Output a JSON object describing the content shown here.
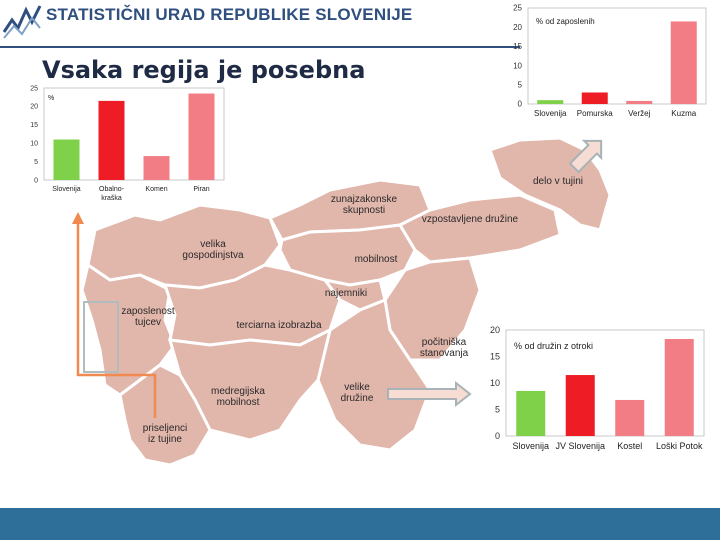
{
  "header": {
    "org_name": "STATISTIČNI URAD REPUBLIKE SLOVENIJE",
    "title": "Vsaka regija je posebna"
  },
  "colors": {
    "header_blue": "#2f4f7f",
    "footer_blue": "#2e6f9a",
    "map_fill": "#e1b6ab",
    "bar_green": "#7fd14a",
    "bar_red": "#ee1c24",
    "bar_pink": "#f27d85",
    "arrow_orange": "#f08a50",
    "arrow_gray": "#b0bcc0"
  },
  "icons": {
    "logo": "statistics-logo-icon"
  },
  "map": {
    "labels": [
      "zunajzakonske skupnosti",
      "vzpostavljene družine",
      "delo v tujini",
      "velika gospodinjstva",
      "mobilnost",
      "najemniki",
      "zaposlenost tujcev",
      "terciarna izobrazba",
      "počitniška stanovanja",
      "medregijska mobilnost",
      "velike družine",
      "priseljenci iz tujine"
    ]
  },
  "chart_data": [
    {
      "type": "bar",
      "title": "",
      "ylabel": "%",
      "categories": [
        "Slovenija",
        "Obalno-kraška",
        "Komen",
        "Piran"
      ],
      "values": [
        11,
        21.5,
        6.5,
        23.5
      ],
      "colors": [
        "#7fd14a",
        "#ee1c24",
        "#f27d85",
        "#f27d85"
      ],
      "ylim": [
        0,
        25
      ],
      "yticks": [
        0,
        5,
        10,
        15,
        20,
        25
      ],
      "grid": false
    },
    {
      "type": "bar",
      "title": "",
      "ylabel": "% od zaposlenih",
      "categories": [
        "Slovenija",
        "Pomurska",
        "Veržej",
        "Kuzma"
      ],
      "values": [
        1,
        3,
        0.8,
        21.5
      ],
      "colors": [
        "#7fd14a",
        "#ee1c24",
        "#f27d85",
        "#f27d85"
      ],
      "ylim": [
        0,
        25
      ],
      "yticks": [
        0,
        5,
        10,
        15,
        20,
        25
      ],
      "grid": false
    },
    {
      "type": "bar",
      "title": "",
      "ylabel": "% od družin z otroki",
      "categories": [
        "Slovenija",
        "JV Slovenija",
        "Kostel",
        "Loški Potok"
      ],
      "values": [
        8.5,
        11.5,
        6.8,
        18.3
      ],
      "colors": [
        "#7fd14a",
        "#ee1c24",
        "#f27d85",
        "#f27d85"
      ],
      "ylim": [
        0,
        20
      ],
      "yticks": [
        0,
        5,
        10,
        15,
        20
      ],
      "grid": false
    }
  ]
}
